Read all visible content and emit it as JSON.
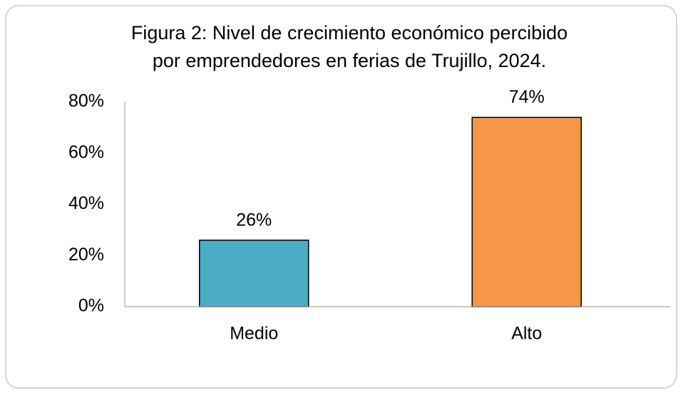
{
  "chart_data": {
    "type": "bar",
    "title": [
      "Figura 2: Nivel de crecimiento económico  percibido",
      "por emprendedores en ferias de Trujillo, 2024."
    ],
    "categories": [
      "Medio",
      "Alto"
    ],
    "values": [
      26,
      74
    ],
    "value_labels": [
      "26%",
      "74%"
    ],
    "colors": [
      "#4bacc6",
      "#f79646"
    ],
    "ylim": [
      0,
      80
    ],
    "yticks": [
      {
        "value": 0,
        "label": "0%"
      },
      {
        "value": 20,
        "label": "20%"
      },
      {
        "value": 40,
        "label": "40%"
      },
      {
        "value": 60,
        "label": "60%"
      },
      {
        "value": 80,
        "label": "80%"
      }
    ],
    "grid": false
  }
}
